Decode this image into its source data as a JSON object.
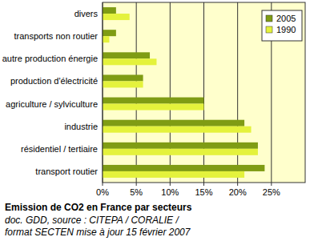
{
  "chart_data": {
    "type": "bar",
    "orientation": "horizontal",
    "title": "Emission de CO2 en France par secteurs",
    "annotations": [
      "doc. GDD, source : CITEPA / CORALIE /",
      "format SECTEN mise à jour 15 février 2007"
    ],
    "categories": [
      "divers",
      "transports non routier",
      "autre production énergie",
      "production d'électricité",
      "agriculture / sylviculture",
      "industrie",
      "résidentiel / tertiaire",
      "transport routier"
    ],
    "series": [
      {
        "name": "2005",
        "color": "#7f9c14",
        "values": [
          2,
          2,
          7,
          6,
          15,
          21,
          23,
          24
        ]
      },
      {
        "name": "1990",
        "color": "#e4f23c",
        "values": [
          4,
          1,
          8,
          6,
          15,
          22,
          23,
          21
        ]
      }
    ],
    "xlim": [
      0,
      30
    ],
    "xticks": [
      {
        "value": 0,
        "label": "0%"
      },
      {
        "value": 5,
        "label": "5%"
      },
      {
        "value": 10,
        "label": "10%"
      },
      {
        "value": 15,
        "label": "15%"
      },
      {
        "value": 20,
        "label": "20%"
      },
      {
        "value": 25,
        "label": "25%"
      }
    ],
    "grid": true,
    "legend": "top-right"
  }
}
